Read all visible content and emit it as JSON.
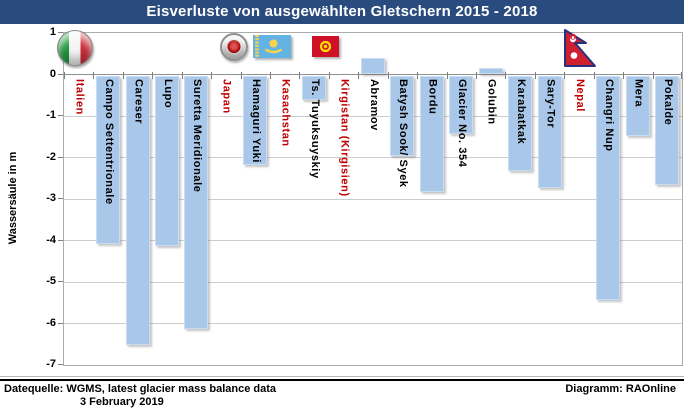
{
  "title": "Eisverluste von ausgewählten Gletschern 2015 - 2018",
  "footer": {
    "source_line1": "Datequelle: WGMS, latest glacier mass balance data",
    "source_line2": "3 February 2019",
    "credit": "Diagramm: RAOnline"
  },
  "colors": {
    "title_bar": "#2A4B7E",
    "bar_fill": "#A9C7E9",
    "country_label": "#C00000",
    "gridline": "#CDCDCD"
  },
  "icons": [
    "italy-flag-icon",
    "japan-flag-icon",
    "kazakhstan-flag-icon",
    "kyrgyzstan-flag-icon",
    "nepal-flag-icon"
  ],
  "chart_data": {
    "type": "bar",
    "title": "Eisverluste von ausgewählten Gletschern 2015 - 2018",
    "xlabel": "",
    "ylabel": "Wassersäule in m",
    "ylim": [
      -7,
      1
    ],
    "yticks": [
      1,
      0,
      -1,
      -2,
      -3,
      -4,
      -5,
      -6,
      -7
    ],
    "grid": true,
    "legend": "none",
    "columns": [
      {
        "kind": "country",
        "label": "Italien",
        "flag": "italy-flag-icon"
      },
      {
        "kind": "bar",
        "label": "Campo Settentrionale",
        "value": -4.05
      },
      {
        "kind": "bar",
        "label": "Careser",
        "value": -6.5
      },
      {
        "kind": "bar",
        "label": "Lupo",
        "value": -4.1
      },
      {
        "kind": "bar",
        "label": "Suretta Meridionale",
        "value": -6.1
      },
      {
        "kind": "country",
        "label": "Japan",
        "flag": "japan-flag-icon"
      },
      {
        "kind": "bar",
        "label": "Hamaguri Yuki",
        "value": -2.15
      },
      {
        "kind": "country",
        "label": "Kasachstan",
        "flag": "kazakhstan-flag-icon"
      },
      {
        "kind": "bar",
        "label": "Ts. Tuyuksuyskiy",
        "value": -0.6
      },
      {
        "kind": "country",
        "label": "Kirgistan (Kirgisien)",
        "flag": "kyrgyzstan-flag-icon"
      },
      {
        "kind": "bar",
        "label": "Abramov",
        "value": 0.4
      },
      {
        "kind": "bar",
        "label": "Batysh Sook/ Syek",
        "value": -1.95
      },
      {
        "kind": "bar",
        "label": "Bordu",
        "value": -2.8
      },
      {
        "kind": "bar",
        "label": "Glacier No. 354",
        "value": -1.4
      },
      {
        "kind": "bar",
        "label": "Golubin",
        "value": 0.15
      },
      {
        "kind": "bar",
        "label": "Karabatkak",
        "value": -2.3
      },
      {
        "kind": "bar",
        "label": "Sary-Tor",
        "value": -2.7
      },
      {
        "kind": "country",
        "label": "Nepal",
        "flag": "nepal-flag-icon"
      },
      {
        "kind": "bar",
        "label": "Changri Nup",
        "value": -5.4
      },
      {
        "kind": "bar",
        "label": "Mera",
        "value": -1.45
      },
      {
        "kind": "bar",
        "label": "Pokalde",
        "value": -2.65
      }
    ]
  }
}
